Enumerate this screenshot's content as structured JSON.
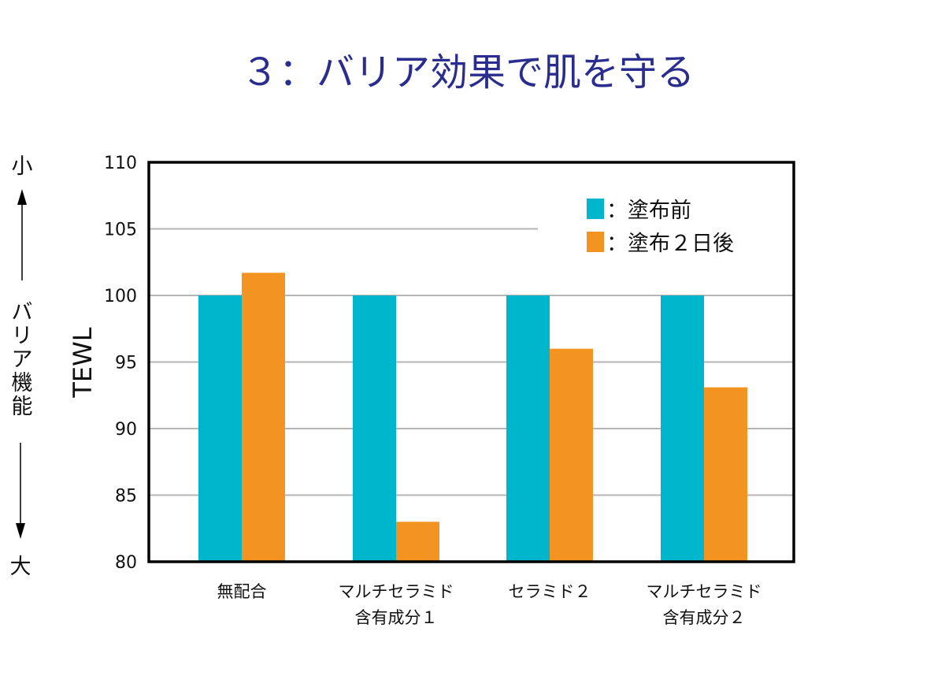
{
  "chart_data": {
    "type": "bar",
    "title": "３：バリア効果で肌を守る",
    "xlabel": "",
    "ylabel": "TEWL",
    "ylim": [
      80,
      110
    ],
    "yticks": [
      "80",
      "85",
      "90",
      "95",
      "100",
      "105",
      "110"
    ],
    "grid": true,
    "legend_position": "top-right",
    "categories": [
      [
        "無配合"
      ],
      [
        "マルチセラミド",
        "含有成分１"
      ],
      [
        "セラミド２"
      ],
      [
        "マルチセラミド",
        "含有成分２"
      ]
    ],
    "series": [
      {
        "name": "：塗布前",
        "color": "#00b6cd",
        "values": [
          100,
          100,
          100,
          100
        ]
      },
      {
        "name": "：塗布２日後",
        "color": "#f39321",
        "values": [
          101.7,
          83.0,
          96.0,
          93.1
        ]
      }
    ],
    "side_annotation": {
      "top": "小",
      "middle": [
        "バ",
        "リ",
        "ア",
        "機",
        "能"
      ],
      "bottom": "大"
    }
  }
}
